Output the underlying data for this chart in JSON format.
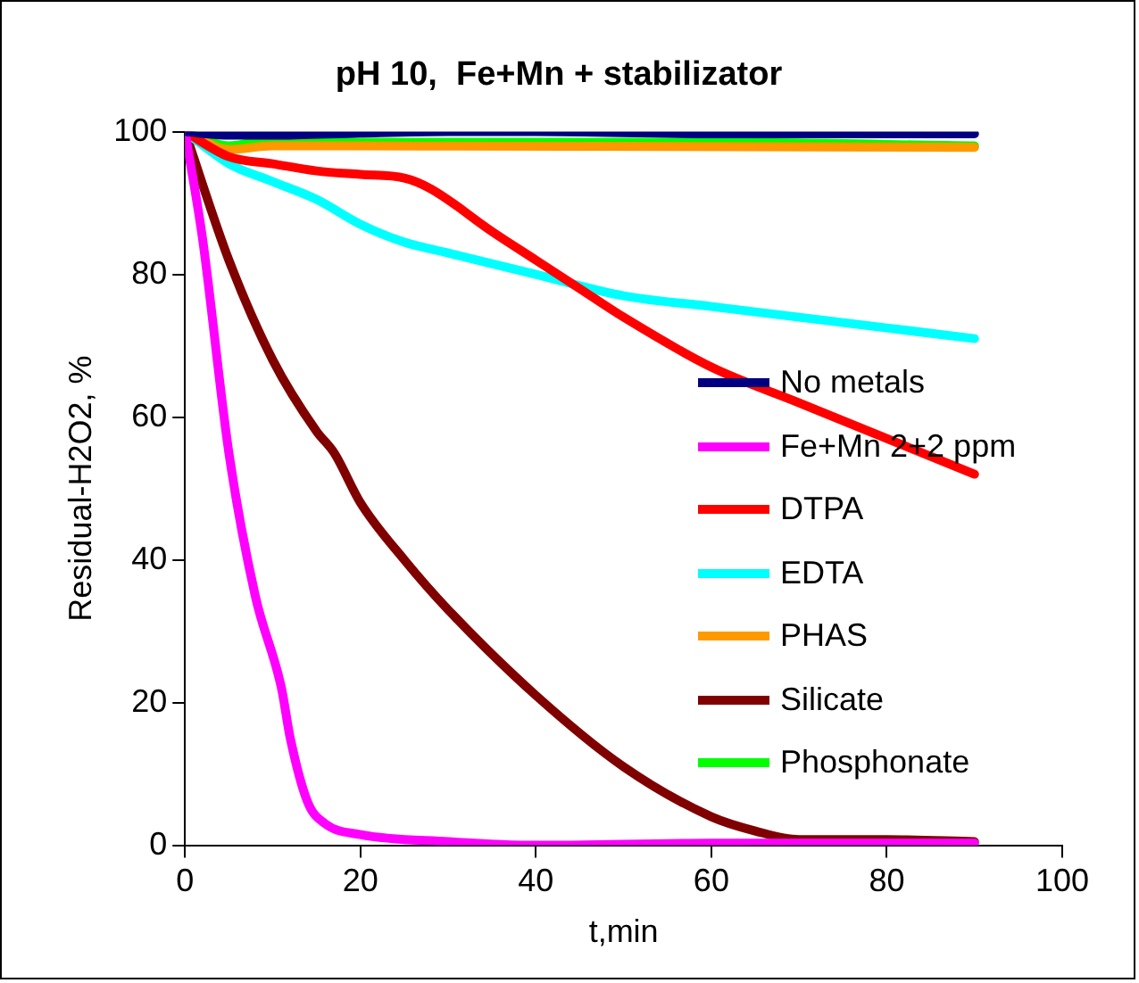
{
  "chart_data": {
    "type": "line",
    "title": "pH 10,  Fe+Mn + stabilizator",
    "xlabel": "t,min",
    "ylabel": "Residual-H2O2, %",
    "xlim": [
      0,
      100
    ],
    "xticks": [
      0,
      20,
      40,
      60,
      80,
      100
    ],
    "ylim": [
      0,
      100
    ],
    "yticks": [
      0,
      20,
      40,
      60,
      80,
      100
    ],
    "grid": false,
    "legend": "right",
    "marker": "none",
    "line_style": "solid",
    "series": [
      {
        "name": "No metals",
        "color": "#000080",
        "x": [
          0,
          5,
          10,
          20,
          30,
          40,
          60,
          90
        ],
        "values": [
          100,
          99.5,
          99.5,
          99.8,
          100,
          100,
          99.7,
          99.7
        ]
      },
      {
        "name": "Fe+Mn 2+2 ppm",
        "color": "#ff00ff",
        "x": [
          0,
          2,
          5,
          8,
          11,
          12,
          14,
          16,
          20,
          30,
          40,
          60,
          90
        ],
        "values": [
          100,
          85,
          55,
          35,
          22,
          15,
          6,
          3,
          1.5,
          0.5,
          0,
          0.3,
          0.3
        ]
      },
      {
        "name": "DTPA",
        "color": "#ff0000",
        "x": [
          0,
          5,
          10,
          15,
          20,
          25,
          28,
          35,
          40,
          45,
          50,
          60,
          70,
          80,
          90
        ],
        "values": [
          100,
          96.5,
          95.5,
          94.5,
          94,
          93.5,
          92,
          86,
          82,
          78,
          74,
          67,
          62,
          57,
          52
        ]
      },
      {
        "name": "EDTA",
        "color": "#00ffff",
        "x": [
          0,
          5,
          10,
          15,
          20,
          25,
          30,
          40,
          50,
          60,
          70,
          80,
          90
        ],
        "values": [
          100,
          95.5,
          93,
          90.5,
          87,
          84.5,
          83,
          80,
          77,
          75.5,
          74,
          72.5,
          71
        ]
      },
      {
        "name": "PHAS",
        "color": "#ff9900",
        "x": [
          0,
          5,
          10,
          20,
          90
        ],
        "values": [
          100,
          97.5,
          98,
          98,
          97.8
        ]
      },
      {
        "name": "Silicate",
        "color": "#800000",
        "x": [
          0,
          5,
          10,
          15,
          17,
          20,
          25,
          30,
          40,
          50,
          60,
          65,
          70,
          80,
          90
        ],
        "values": [
          100,
          82,
          68,
          58,
          55,
          48,
          40,
          33,
          21,
          11,
          4,
          2,
          0.8,
          0.8,
          0.5
        ]
      },
      {
        "name": "Phosphonate",
        "color": "#00ff00",
        "x": [
          0,
          5,
          10,
          20,
          60,
          90
        ],
        "values": [
          100,
          98,
          99,
          98.5,
          98.5,
          98
        ]
      }
    ]
  }
}
